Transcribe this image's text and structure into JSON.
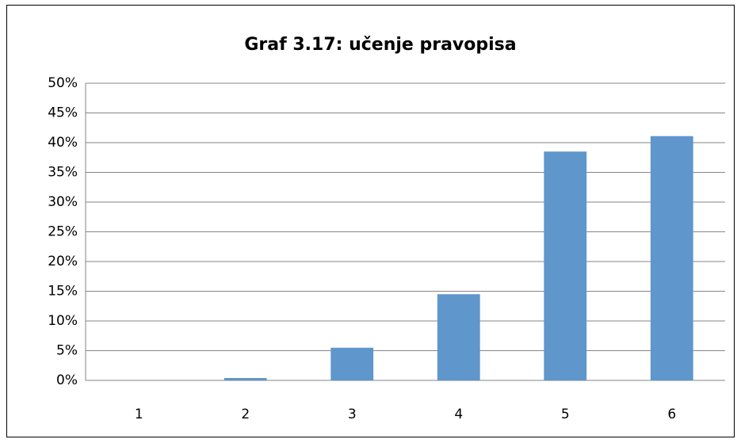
{
  "chart_data": {
    "type": "bar",
    "title": "Graf 3.17: učenje pravopisa",
    "categories": [
      "1",
      "2",
      "3",
      "4",
      "5",
      "6"
    ],
    "values": [
      0,
      0.4,
      5.5,
      14.5,
      38.5,
      41.1
    ],
    "color": "#5f96cb",
    "ylim": [
      0,
      50
    ],
    "yticks": [
      {
        "value": 0,
        "label": "0%"
      },
      {
        "value": 5,
        "label": "5%"
      },
      {
        "value": 10,
        "label": "10%"
      },
      {
        "value": 15,
        "label": "15%"
      },
      {
        "value": 20,
        "label": "20%"
      },
      {
        "value": 25,
        "label": "25%"
      },
      {
        "value": 30,
        "label": "30%"
      },
      {
        "value": 35,
        "label": "35%"
      },
      {
        "value": 40,
        "label": "40%"
      },
      {
        "value": 45,
        "label": "45%"
      },
      {
        "value": 50,
        "label": "50%"
      }
    ],
    "grid": true
  }
}
